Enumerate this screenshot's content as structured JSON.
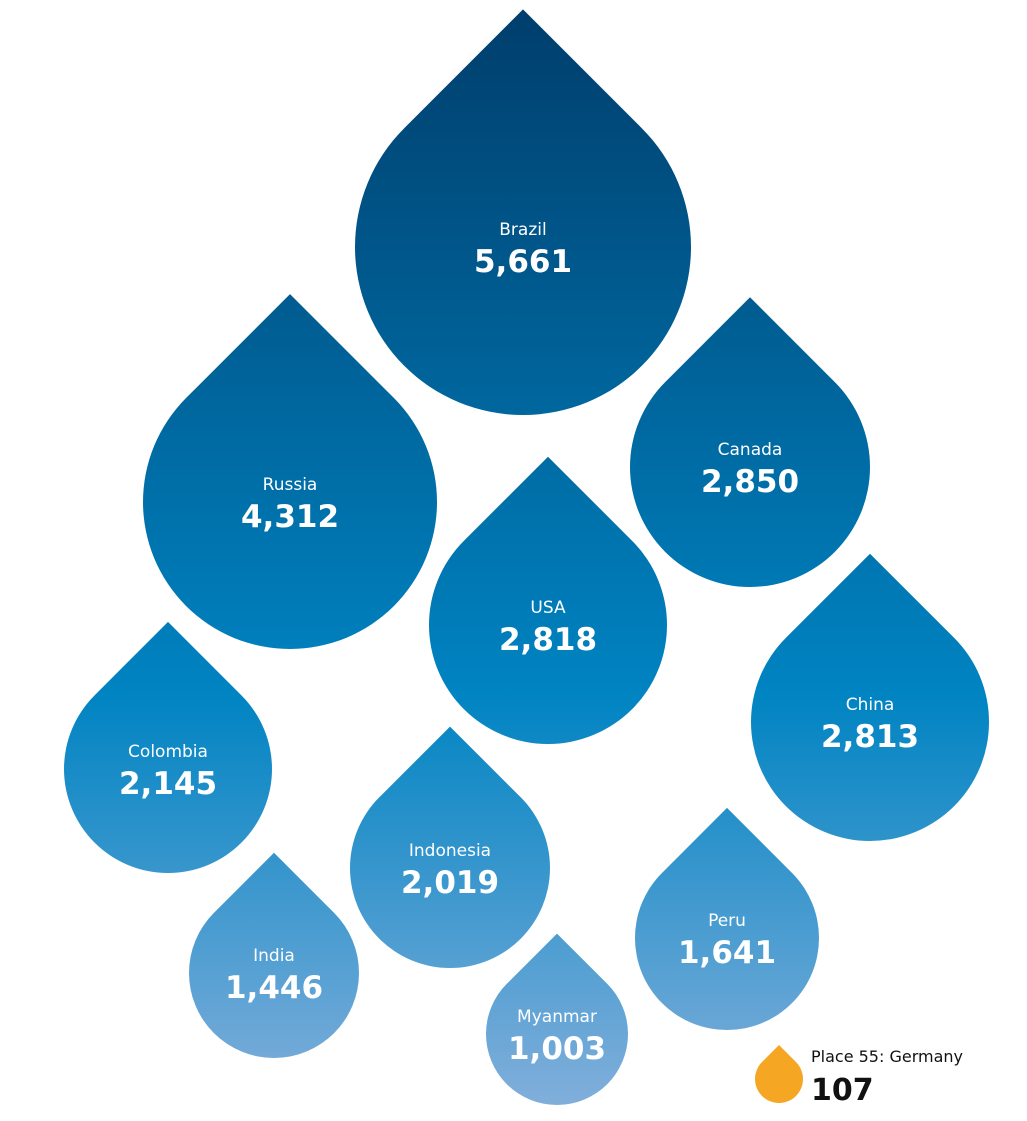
{
  "chart_data": {
    "type": "bubble",
    "title": "",
    "colors": {
      "top": "#003d6b",
      "mid": "#0078b8",
      "bottom": "#7aaad6",
      "highlight": "#f5a623"
    },
    "items": [
      {
        "country": "Brazil",
        "value": 5661
      },
      {
        "country": "Russia",
        "value": 4312
      },
      {
        "country": "Canada",
        "value": 2850
      },
      {
        "country": "USA",
        "value": 2818
      },
      {
        "country": "China",
        "value": 2813
      },
      {
        "country": "Colombia",
        "value": 2145
      },
      {
        "country": "Indonesia",
        "value": 2019
      },
      {
        "country": "Peru",
        "value": 1641
      },
      {
        "country": "India",
        "value": 1446
      },
      {
        "country": "Myanmar",
        "value": 1003
      }
    ],
    "highlight": {
      "label": "Place 55: Germany",
      "value": 107
    }
  }
}
